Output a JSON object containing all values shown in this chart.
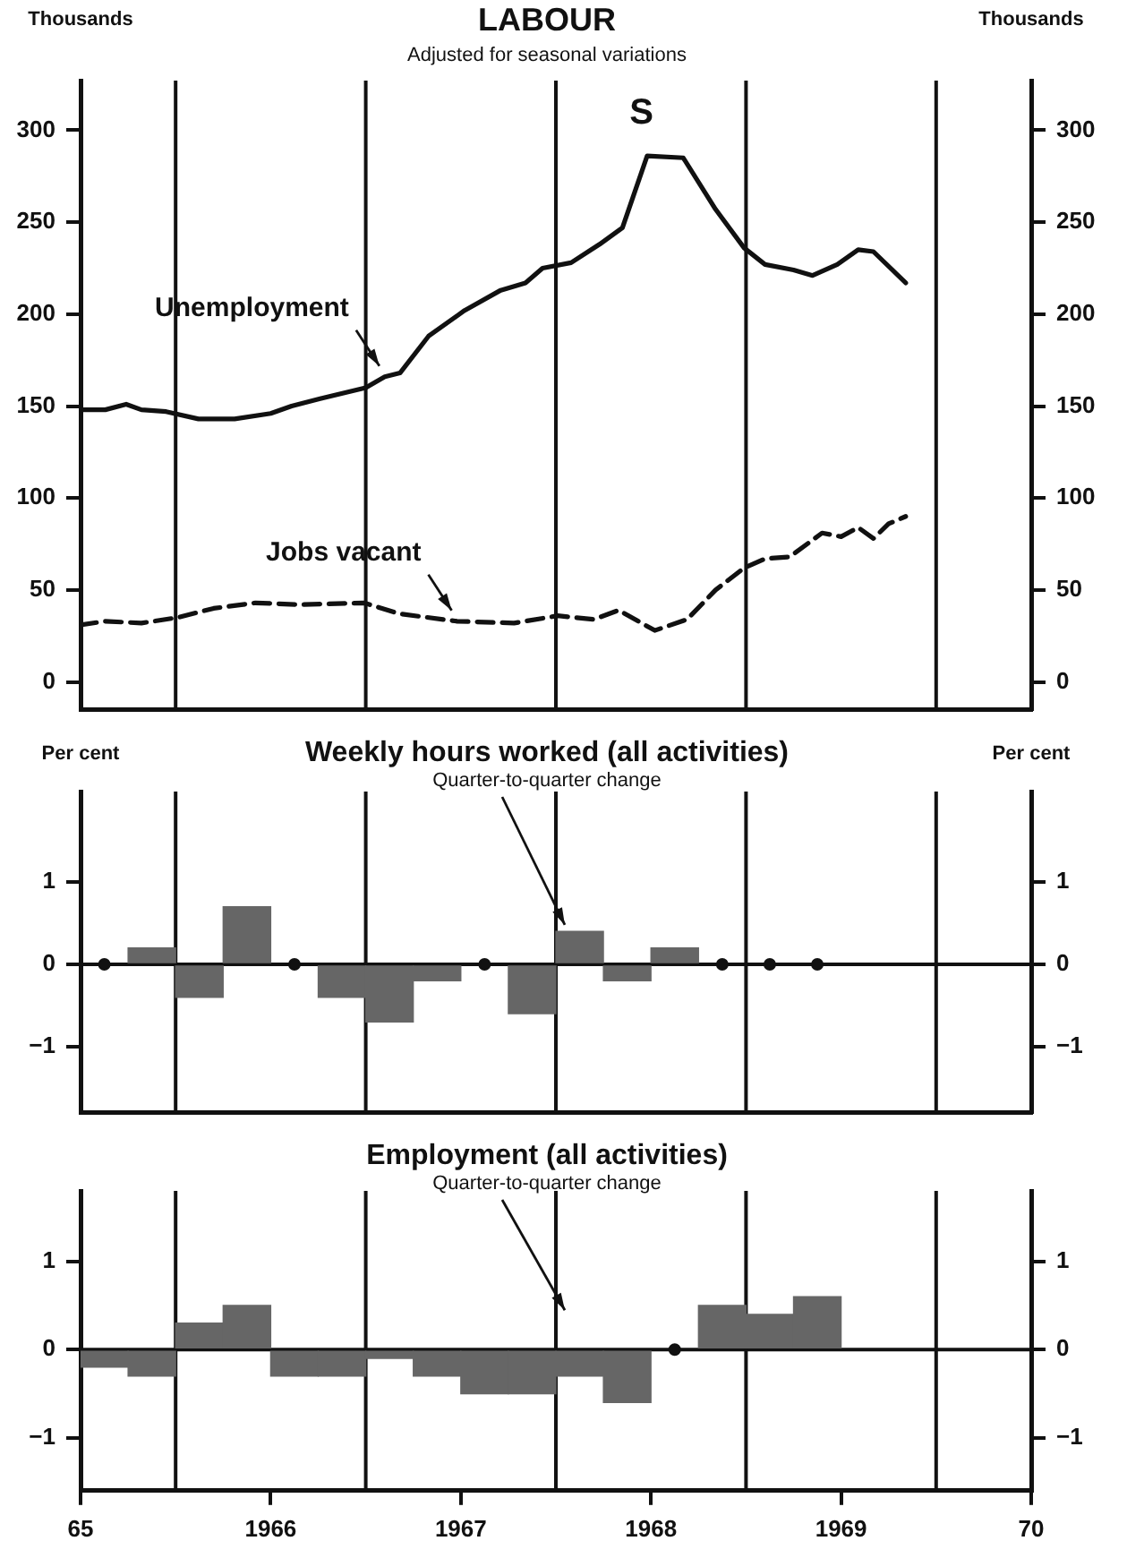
{
  "chart_data": [
    {
      "type": "line",
      "title": "LABOUR",
      "subtitle": "Adjusted for seasonal variations",
      "ylabel": "Thousands",
      "y2label": "Thousands",
      "xlim": [
        1965,
        1970
      ],
      "ylim": [
        -15,
        327
      ],
      "yticks": [
        0,
        50,
        100,
        150,
        200,
        250,
        300
      ],
      "y2lim": [
        -15,
        327
      ],
      "y2ticks": [
        0,
        50,
        100,
        150,
        200,
        250,
        300
      ],
      "tick_labels": "y",
      "grid": false,
      "legend": false,
      "marker": "none",
      "ref_lines": [
        {
          "axis": "x",
          "value": 1965.5,
          "color": "#111111"
        },
        {
          "axis": "x",
          "value": 1966.5,
          "color": "#111111"
        },
        {
          "axis": "x",
          "value": 1967.5,
          "color": "#111111"
        },
        {
          "axis": "x",
          "value": 1968.5,
          "color": "#111111"
        },
        {
          "axis": "x",
          "value": 1969.5,
          "color": "#111111"
        }
      ],
      "annotations": [
        "S"
      ],
      "series": [
        {
          "name": "Unemployment",
          "color": "#111111",
          "line_style": "solid",
          "x": [
            1965.0,
            1965.13,
            1965.24,
            1965.32,
            1965.45,
            1965.62,
            1965.81,
            1966.0,
            1966.11,
            1966.26,
            1966.5,
            1966.6,
            1966.68,
            1966.83,
            1967.02,
            1967.21,
            1967.34,
            1967.43,
            1967.58,
            1967.73,
            1967.85,
            1967.98,
            1968.17,
            1968.34,
            1968.49,
            1968.6,
            1968.75,
            1968.85,
            1968.98,
            1969.09,
            1969.17,
            1969.34
          ],
          "values": [
            148,
            148,
            151,
            148,
            147,
            143,
            143,
            146,
            150,
            154,
            160,
            166,
            168,
            188,
            202,
            213,
            217,
            225,
            228,
            238,
            247,
            286,
            285,
            257,
            236,
            227,
            224,
            221,
            227,
            235,
            234,
            217
          ]
        },
        {
          "name": "Jobs vacant",
          "color": "#111111",
          "line_style": "dashed",
          "x": [
            1965.0,
            1965.13,
            1965.32,
            1965.51,
            1965.7,
            1965.92,
            1966.15,
            1966.49,
            1966.68,
            1966.98,
            1967.28,
            1967.51,
            1967.7,
            1967.83,
            1968.02,
            1968.19,
            1968.34,
            1968.49,
            1968.6,
            1968.73,
            1968.9,
            1969.0,
            1969.09,
            1969.17,
            1969.25,
            1969.34
          ],
          "values": [
            31,
            33,
            32,
            35,
            40,
            43,
            42,
            43,
            37,
            33,
            32,
            36,
            34,
            39,
            28,
            34,
            50,
            62,
            67,
            68,
            81,
            79,
            84,
            78,
            86,
            90
          ]
        }
      ]
    },
    {
      "type": "bar",
      "title": "Weekly hours worked (all activities)",
      "subtitle": "Quarter-to-quarter change",
      "ylabel": "Per cent",
      "y2label": "Per cent",
      "xlim": [
        1965,
        1970
      ],
      "ylim": [
        -1.8,
        2.1
      ],
      "yticks": [
        -1,
        0,
        1
      ],
      "y2lim": [
        -1.8,
        2.1
      ],
      "y2ticks": [
        -1,
        0,
        1
      ],
      "tick_labels": "y",
      "grid": false,
      "legend": false,
      "ref_lines": [
        {
          "axis": "y",
          "value": 0,
          "color": "#111111"
        },
        {
          "axis": "x",
          "value": 1965.5,
          "color": "#111111"
        },
        {
          "axis": "x",
          "value": 1966.5,
          "color": "#111111"
        },
        {
          "axis": "x",
          "value": 1967.5,
          "color": "#111111"
        },
        {
          "axis": "x",
          "value": 1968.5,
          "color": "#111111"
        },
        {
          "axis": "x",
          "value": 1969.5,
          "color": "#111111"
        }
      ],
      "series": [
        {
          "color": "#666666",
          "x": [
            1965.375,
            1965.625,
            1965.875,
            1966.375,
            1966.625,
            1966.875,
            1967.375,
            1967.625,
            1967.875,
            1968.125
          ],
          "values": [
            0.2,
            -0.4,
            0.7,
            -0.4,
            -0.7,
            -0.2,
            -0.6,
            0.4,
            -0.2,
            0.2
          ]
        },
        {
          "type": "scatter",
          "color": "#111111",
          "marker": "circle",
          "x": [
            1965.125,
            1966.125,
            1967.125,
            1968.375,
            1968.625,
            1968.875
          ],
          "values": [
            0,
            0,
            0,
            0,
            0,
            0
          ]
        }
      ]
    },
    {
      "type": "bar",
      "title": "Employment (all activities)",
      "subtitle": "Quarter-to-quarter change",
      "xlim": [
        1965,
        1970
      ],
      "ylim": [
        -1.6,
        1.8
      ],
      "yticks": [
        -1,
        0,
        1
      ],
      "y2lim": [
        -1.6,
        1.8
      ],
      "y2ticks": [
        -1,
        0,
        1
      ],
      "grid": false,
      "legend": false,
      "xticks": [
        {
          "value": 1965,
          "label": "65"
        },
        1966,
        1967,
        1968,
        1969,
        {
          "value": 1970,
          "label": "70"
        }
      ],
      "ref_lines": [
        {
          "axis": "y",
          "value": 0,
          "color": "#111111"
        },
        {
          "axis": "x",
          "value": 1965.5,
          "color": "#111111"
        },
        {
          "axis": "x",
          "value": 1966.5,
          "color": "#111111"
        },
        {
          "axis": "x",
          "value": 1967.5,
          "color": "#111111"
        },
        {
          "axis": "x",
          "value": 1968.5,
          "color": "#111111"
        },
        {
          "axis": "x",
          "value": 1969.5,
          "color": "#111111"
        }
      ],
      "x": [
        1965.125,
        1965.375,
        1965.625,
        1965.875,
        1966.125,
        1966.375,
        1966.625,
        1966.875,
        1967.125,
        1967.375,
        1967.625,
        1967.875,
        1968.125,
        1968.375,
        1968.625,
        1968.875
      ],
      "series": [
        {
          "color": "#666666",
          "values": [
            -0.2,
            -0.3,
            0.3,
            0.5,
            -0.3,
            -0.3,
            -0.1,
            -0.3,
            -0.5,
            -0.5,
            -0.3,
            -0.6,
            null,
            0.5,
            0.4,
            0.6
          ]
        },
        {
          "type": "scatter",
          "color": "#111111",
          "marker": "circle",
          "x": [
            1968.125
          ],
          "values": [
            0
          ]
        }
      ]
    }
  ]
}
